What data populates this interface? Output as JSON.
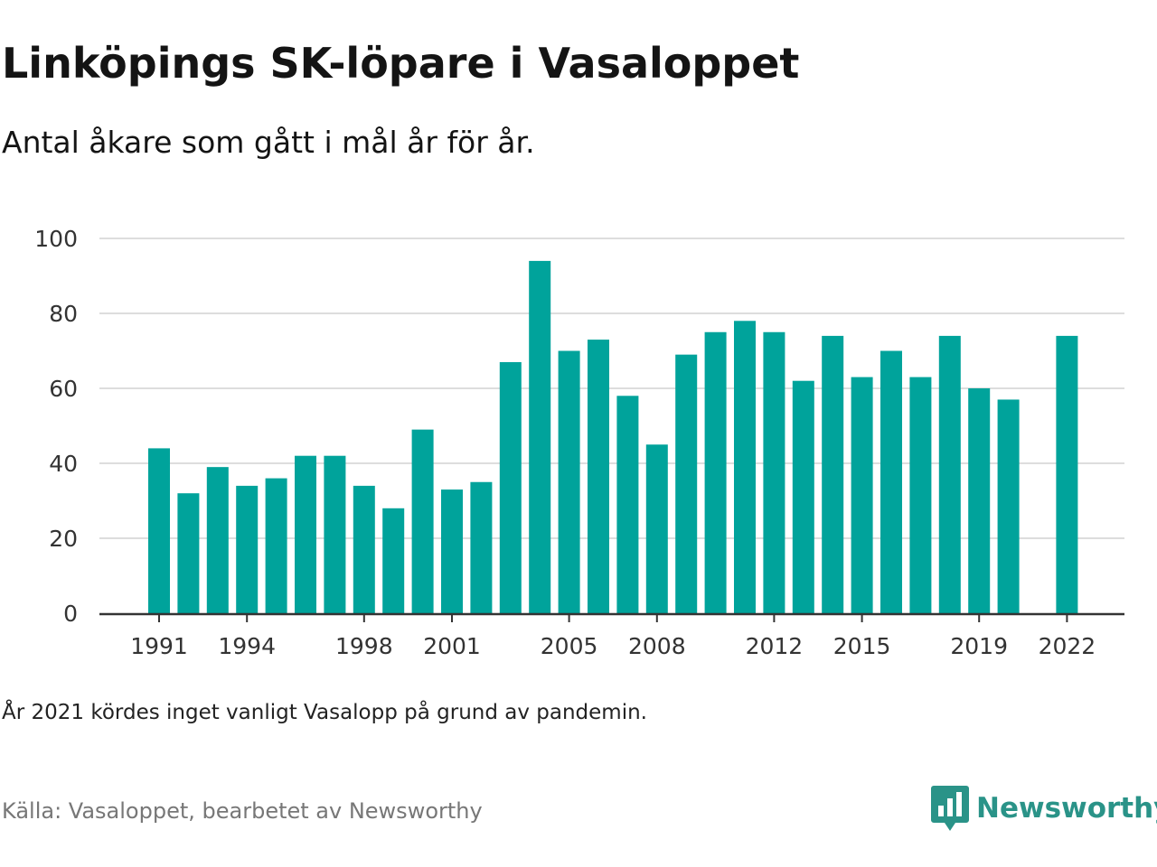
{
  "header": {
    "title": "Linköpings SK-löpare i Vasaloppet",
    "subtitle": "Antal åkare som gått i mål år för år."
  },
  "footer": {
    "note": "År 2021 kördes inget vanligt Vasalopp på grund av pandemin.",
    "source": "Källa: Vasaloppet, bearbetet av Newsworthy",
    "brand": "Newsworthy",
    "brand_icon": "newsworthy-logo-icon"
  },
  "colors": {
    "bar": "#00a39b",
    "grid": "#dddddd",
    "axis": "#333333",
    "brand": "#2a9388"
  },
  "chart_data": {
    "type": "bar",
    "title": "Linköpings SK-löpare i Vasaloppet",
    "subtitle": "Antal åkare som gått i mål år för år.",
    "xlabel": "",
    "ylabel": "",
    "ylim": [
      0,
      100
    ],
    "yticks": [
      0,
      20,
      40,
      60,
      80,
      100
    ],
    "xtick_labels": [
      "1991",
      "1994",
      "1998",
      "2001",
      "2005",
      "2008",
      "2012",
      "2015",
      "2019",
      "2022"
    ],
    "grid": true,
    "legend": "none",
    "categories": [
      "1991",
      "1992",
      "1993",
      "1994",
      "1995",
      "1996",
      "1997",
      "1998",
      "1999",
      "2000",
      "2001",
      "2002",
      "2003",
      "2004",
      "2005",
      "2006",
      "2007",
      "2008",
      "2009",
      "2010",
      "2011",
      "2012",
      "2013",
      "2014",
      "2015",
      "2016",
      "2017",
      "2018",
      "2019",
      "2020",
      "2021",
      "2022"
    ],
    "values": [
      44,
      32,
      39,
      34,
      36,
      42,
      42,
      34,
      28,
      49,
      33,
      35,
      67,
      94,
      70,
      73,
      58,
      45,
      69,
      75,
      78,
      75,
      62,
      74,
      63,
      70,
      63,
      74,
      60,
      57,
      null,
      74
    ]
  }
}
